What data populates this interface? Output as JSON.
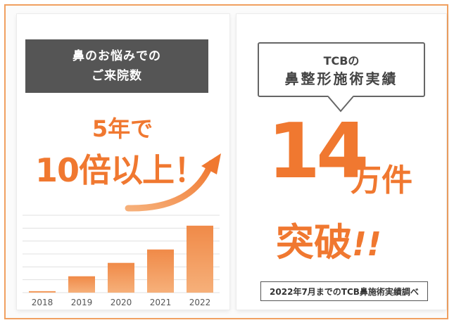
{
  "left": {
    "header": {
      "line1": "鼻のお悩みでの",
      "line2": "ご来院数"
    },
    "growth": {
      "line1": "5年で",
      "line2": "10倍以上！"
    }
  },
  "chart_data": {
    "type": "bar",
    "categories": [
      "2018",
      "2019",
      "2020",
      "2021",
      "2022"
    ],
    "values": [
      1,
      11,
      20,
      29,
      45
    ],
    "ylim": [
      0,
      52
    ],
    "grid": true,
    "colors": {
      "bar_top": "#f08a48",
      "bar_bottom": "#f6b07a"
    }
  },
  "right": {
    "bubble": {
      "brand": "TCB",
      "particle": "の",
      "line2": "鼻整形施術実績"
    },
    "count": {
      "number": "14",
      "unit": "万件"
    },
    "breakthrough": {
      "text": "突破",
      "marks": "!!"
    },
    "note": "2022年7月までのTCB鼻施術実績調べ"
  },
  "colors": {
    "accent": "#f07830",
    "dark": "#555555",
    "border": "#f0a060"
  }
}
